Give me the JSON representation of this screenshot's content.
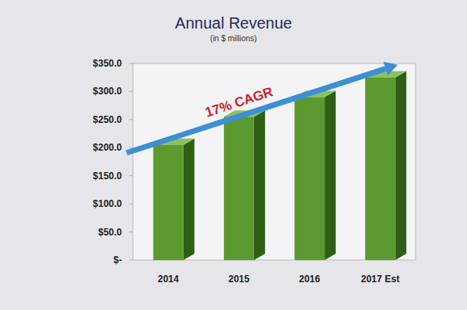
{
  "chart_data": {
    "type": "bar",
    "title": "Annual Revenue",
    "subtitle": "(in $ millions)",
    "annotation": "17% CAGR",
    "categories": [
      "2014",
      "2015",
      "2016",
      "2017 Est"
    ],
    "values": [
      205,
      255,
      290,
      325
    ],
    "color": "#5b9a2e",
    "ylim": [
      0,
      350
    ],
    "yticks": [
      {
        "value": 0,
        "label": "$-"
      },
      {
        "value": 50,
        "label": "$50.0"
      },
      {
        "value": 100,
        "label": "$100.0"
      },
      {
        "value": 150,
        "label": "$150.0"
      },
      {
        "value": 200,
        "label": "$200.0"
      },
      {
        "value": 250,
        "label": "$250.0"
      },
      {
        "value": 300,
        "label": "$300.0"
      },
      {
        "value": 350,
        "label": "$350.0"
      }
    ],
    "grid": false
  }
}
